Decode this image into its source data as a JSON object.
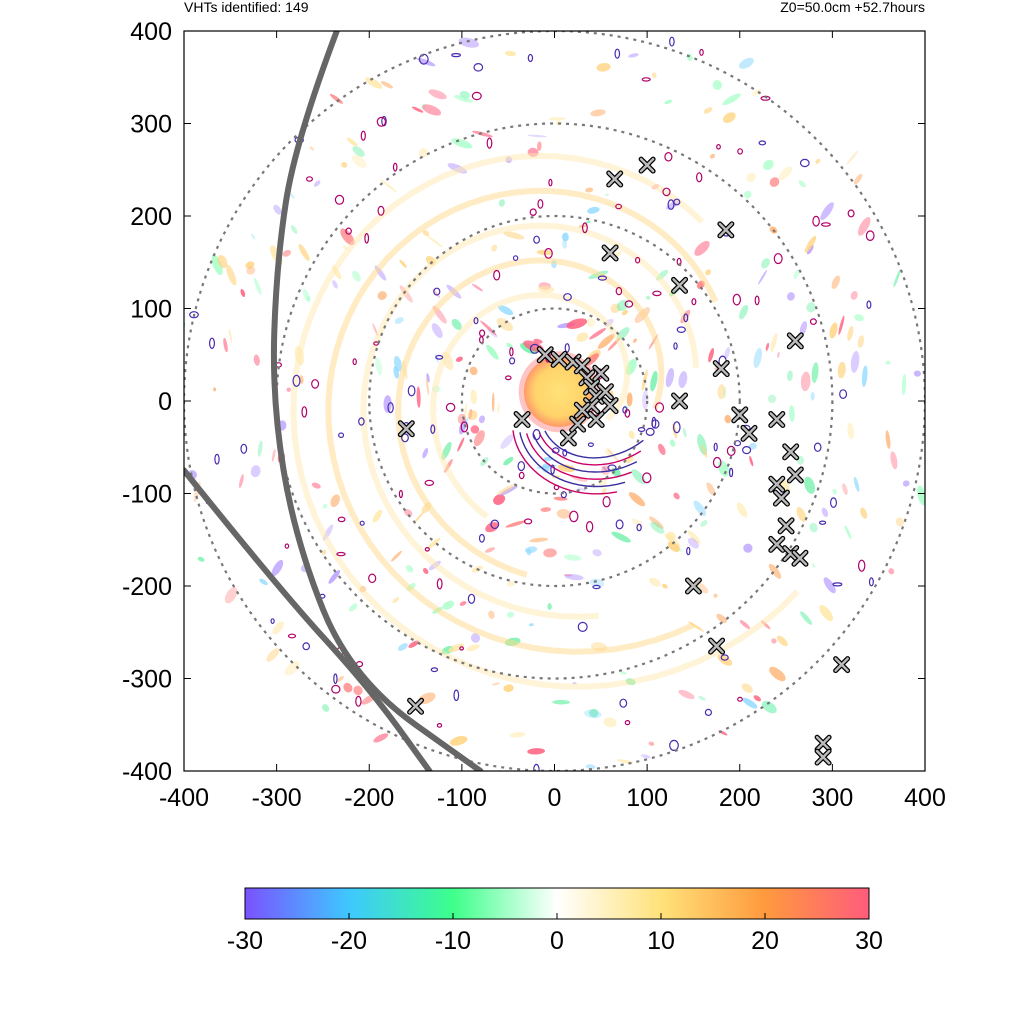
{
  "header": {
    "left": "VHTs identified: 149",
    "right": "Z0=50.0cm  +52.7hours"
  },
  "chart_data": {
    "type": "heatmap",
    "title": "",
    "xlabel": "",
    "ylabel": "",
    "xlim": [
      -400,
      400
    ],
    "ylim": [
      -400,
      400
    ],
    "x_ticks": [
      "-400",
      "-300",
      "-200",
      "-100",
      "0",
      "100",
      "200",
      "300",
      "400"
    ],
    "y_ticks": [
      "400",
      "300",
      "200",
      "100",
      "0",
      "-100",
      "-200",
      "-300",
      "-400"
    ],
    "grid": false,
    "colorbar": {
      "range": [
        -30,
        30
      ],
      "ticks": [
        "-30",
        "-20",
        "-10",
        "0",
        "10",
        "20",
        "30"
      ],
      "colors": [
        "#7a52ff",
        "#3ec8ff",
        "#3dff8a",
        "#ffffff",
        "#ffe27a",
        "#ff9a3d",
        "#ff5c7c"
      ]
    },
    "range_rings_radius": [
      100,
      200,
      300,
      400
    ],
    "core": {
      "center": [
        5,
        10
      ],
      "radius": 38,
      "value": 15
    },
    "vht_markers": [
      [
        -10,
        50
      ],
      [
        5,
        45
      ],
      [
        20,
        42
      ],
      [
        30,
        38
      ],
      [
        35,
        25
      ],
      [
        40,
        15
      ],
      [
        45,
        5
      ],
      [
        40,
        -5
      ],
      [
        30,
        -10
      ],
      [
        15,
        -40
      ],
      [
        50,
        30
      ],
      [
        55,
        10
      ],
      [
        60,
        -5
      ],
      [
        45,
        -20
      ],
      [
        25,
        -25
      ],
      [
        -35,
        -20
      ],
      [
        -160,
        -30
      ],
      [
        60,
        160
      ],
      [
        65,
        240
      ],
      [
        100,
        255
      ],
      [
        185,
        185
      ],
      [
        135,
        125
      ],
      [
        260,
        65
      ],
      [
        180,
        35
      ],
      [
        135,
        0
      ],
      [
        200,
        -15
      ],
      [
        210,
        -35
      ],
      [
        240,
        -20
      ],
      [
        255,
        -55
      ],
      [
        260,
        -80
      ],
      [
        240,
        -90
      ],
      [
        245,
        -105
      ],
      [
        250,
        -135
      ],
      [
        240,
        -155
      ],
      [
        255,
        -165
      ],
      [
        265,
        -170
      ],
      [
        150,
        -200
      ],
      [
        175,
        -265
      ],
      [
        310,
        -285
      ],
      [
        -150,
        -330
      ],
      [
        290,
        -370
      ],
      [
        290,
        -385
      ]
    ],
    "tracks": [
      {
        "points": [
          [
            -235,
            400
          ],
          [
            -280,
            280
          ],
          [
            -300,
            150
          ],
          [
            -305,
            0
          ],
          [
            -280,
            -150
          ],
          [
            -220,
            -300
          ],
          [
            -80,
            -400
          ]
        ]
      },
      {
        "points": [
          [
            -400,
            -75
          ],
          [
            -300,
            -200
          ],
          [
            -200,
            -310
          ],
          [
            -135,
            -400
          ]
        ]
      }
    ]
  }
}
